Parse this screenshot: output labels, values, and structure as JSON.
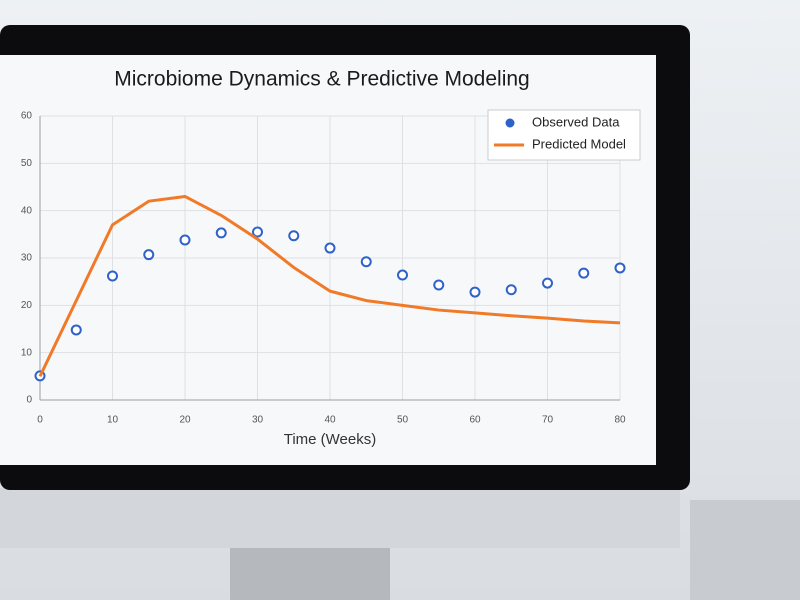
{
  "chart_data": {
    "type": "line",
    "title": "Microbiome Dynamics & Predictive Modeling",
    "x_label": "Time (Weeks)",
    "x": [
      0,
      5,
      10,
      15,
      20,
      25,
      30,
      35,
      40,
      45,
      50,
      55,
      60,
      65,
      70,
      75,
      80
    ],
    "series": [
      {
        "name": "Observed Data",
        "color": "#2f62c8",
        "style": "markers",
        "values": [
          5.1,
          14.8,
          26.2,
          30.7,
          33.8,
          35.3,
          35.5,
          34.7,
          32.1,
          29.2,
          26.4,
          24.3,
          22.8,
          23.3,
          24.7,
          26.8,
          27.9
        ]
      },
      {
        "name": "Predicted Model",
        "color": "#f07a28",
        "style": "line",
        "values": [
          5,
          21,
          37,
          42,
          43,
          39,
          34,
          28,
          23,
          21,
          20,
          19,
          18.4,
          17.8,
          17.3,
          16.7,
          16.3
        ]
      }
    ],
    "xlim": [
      0,
      80
    ],
    "xticks": [
      0,
      10,
      20,
      30,
      40,
      50,
      60,
      70,
      80
    ],
    "ylim": [
      0,
      60
    ],
    "yticks": [
      0,
      10,
      20,
      30,
      40,
      50,
      60
    ],
    "grid": true,
    "legend": "upper right"
  }
}
